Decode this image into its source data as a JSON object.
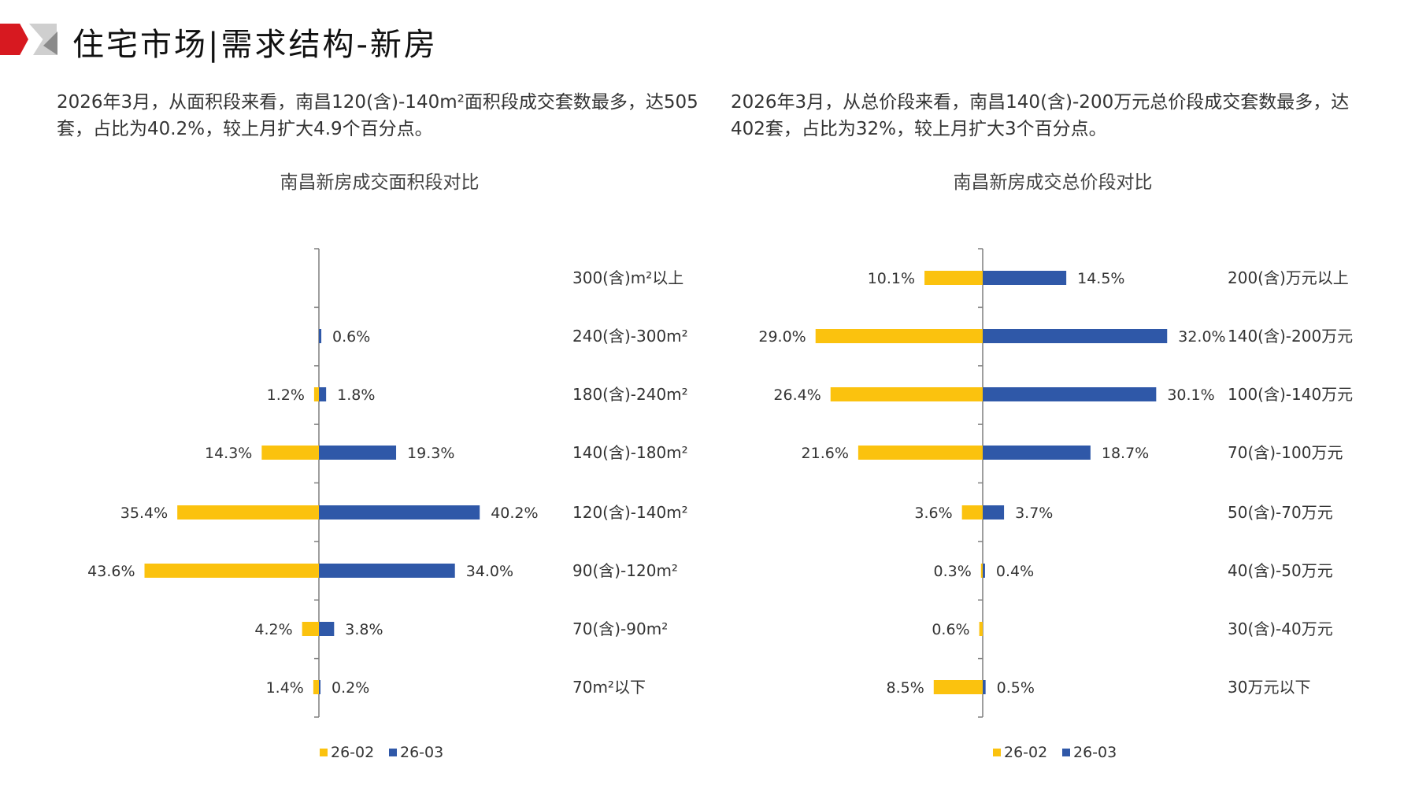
{
  "header": {
    "title": "住宅市场|需求结构-新房"
  },
  "left_text": "2026年3月，从面积段来看，南昌120(含)-140m²面积段成交套数最多，达505套，占比为40.2%，较上月扩大4.9个百分点。",
  "right_text": "2026年3月，从总价段来看，南昌140(含)-200万元总价段成交套数最多，达402套，占比为32%，较上月扩大3个百分点。",
  "colors": {
    "s1": "#fbc20e",
    "s2": "#2f58a8",
    "axis": "#7f7f7f"
  },
  "chart_data": [
    {
      "type": "bar",
      "orientation": "horizontal-butterfly",
      "title": "南昌新房成交面积段对比",
      "categories": [
        "300(含)m²以上",
        "240(含)-300m²",
        "180(含)-240m²",
        "140(含)-180m²",
        "120(含)-140m²",
        "90(含)-120m²",
        "70(含)-90m²",
        "70m²以下"
      ],
      "series": [
        {
          "name": "26-02",
          "values": [
            null,
            null,
            1.2,
            14.3,
            35.4,
            43.6,
            4.2,
            1.4
          ],
          "labels": [
            "",
            "",
            "1.2%",
            "14.3%",
            "35.4%",
            "43.6%",
            "4.2%",
            "1.4%"
          ]
        },
        {
          "name": "26-03",
          "values": [
            null,
            0.6,
            1.8,
            19.3,
            40.2,
            34.0,
            3.8,
            0.2
          ],
          "labels": [
            "",
            "0.6%",
            "1.8%",
            "19.3%",
            "40.2%",
            "34.0%",
            "3.8%",
            "0.2%"
          ]
        }
      ],
      "unit": "%",
      "legend": "bottom"
    },
    {
      "type": "bar",
      "orientation": "horizontal-butterfly",
      "title": "南昌新房成交总价段对比",
      "categories": [
        "200(含)万元以上",
        "140(含)-200万元",
        "100(含)-140万元",
        "70(含)-100万元",
        "50(含)-70万元",
        "40(含)-50万元",
        "30(含)-40万元",
        "30万元以下"
      ],
      "series": [
        {
          "name": "26-02",
          "values": [
            10.1,
            29.0,
            26.4,
            21.6,
            3.6,
            0.3,
            0.6,
            8.5
          ],
          "labels": [
            "10.1%",
            "29.0%",
            "26.4%",
            "21.6%",
            "3.6%",
            "0.3%",
            "0.6%",
            "8.5%"
          ]
        },
        {
          "name": "26-03",
          "values": [
            14.5,
            32.0,
            30.1,
            18.7,
            3.7,
            0.4,
            null,
            0.5
          ],
          "labels": [
            "14.5%",
            "32.0%",
            "30.1%",
            "18.7%",
            "3.7%",
            "0.4%",
            "",
            "0.5%"
          ]
        }
      ],
      "unit": "%",
      "legend": "bottom"
    }
  ]
}
